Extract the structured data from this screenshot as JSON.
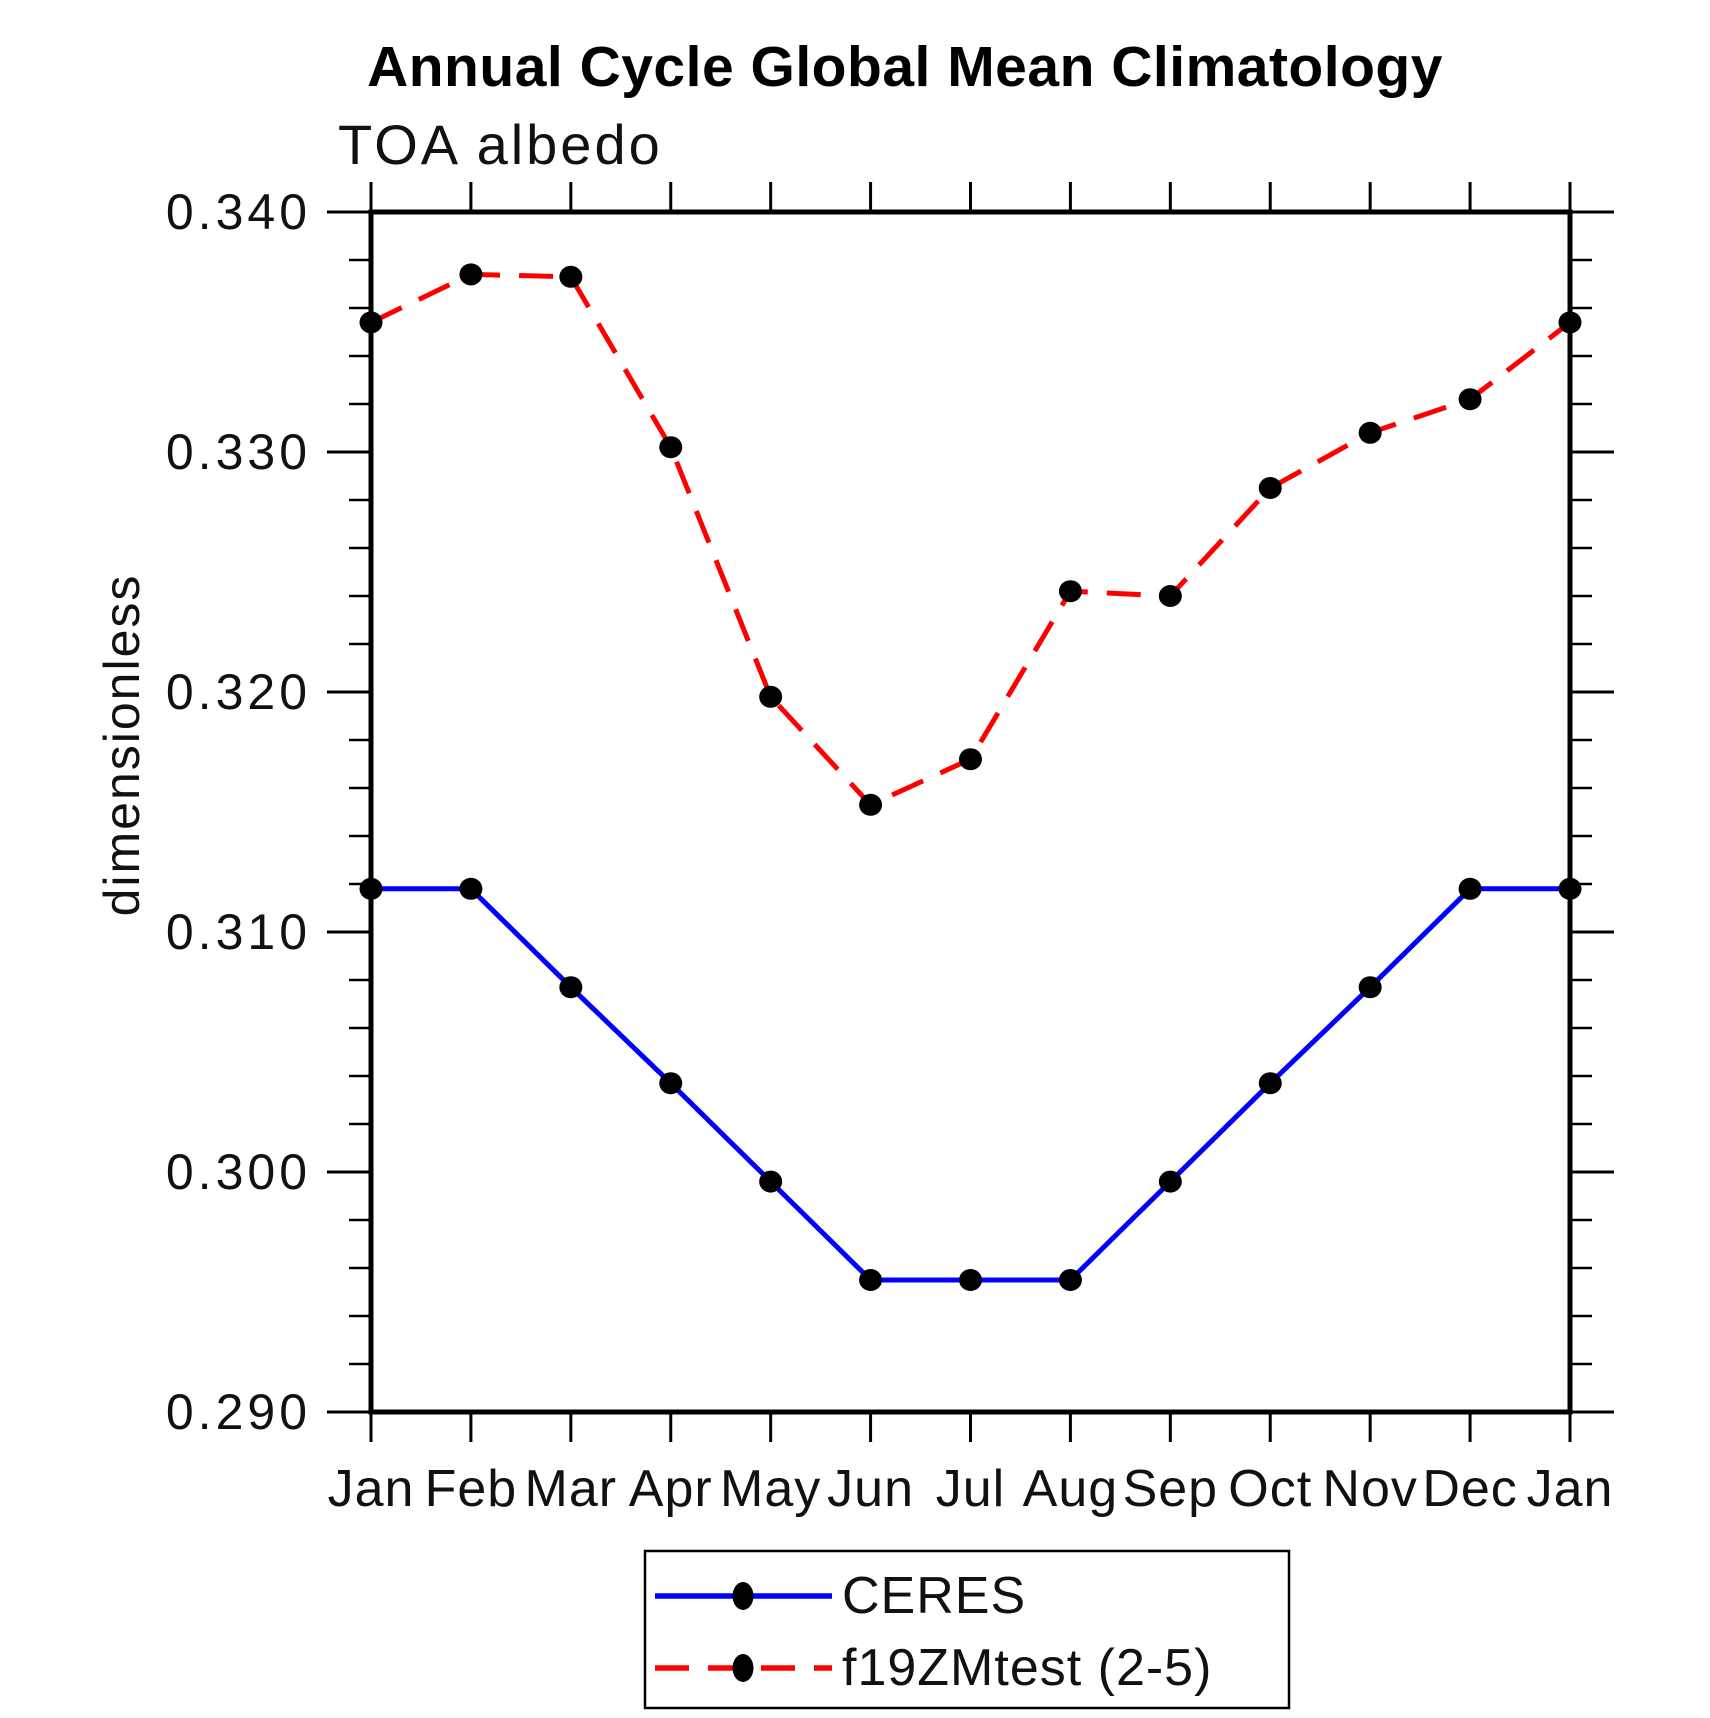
{
  "chart_data": {
    "type": "line",
    "title": "Annual Cycle Global Mean Climatology",
    "subtitle": "TOA albedo",
    "xlabel": "",
    "ylabel": "dimensionless",
    "categories": [
      "Jan",
      "Feb",
      "Mar",
      "Apr",
      "May",
      "Jun",
      "Jul",
      "Aug",
      "Sep",
      "Oct",
      "Nov",
      "Dec",
      "Jan"
    ],
    "ylim": [
      0.29,
      0.34
    ],
    "ytick_major": 0.01,
    "ytick_minor": 0.002,
    "ytick_labels_top_down": [
      "0.340",
      "0.330",
      "0.320",
      "0.310",
      "0.300",
      "0.290"
    ],
    "grid": false,
    "legend_position": "bottom-center",
    "marker_color": "#000000",
    "series": [
      {
        "name": "CERES",
        "color": "#0000ff",
        "style": "solid",
        "marker": "circle",
        "values": [
          0.3118,
          0.3118,
          0.3077,
          0.3037,
          0.2996,
          0.2955,
          0.2955,
          0.2955,
          0.2996,
          0.3037,
          0.3077,
          0.3118,
          0.3118
        ]
      },
      {
        "name": "f19ZMtest (2-5)",
        "color": "#ff0000",
        "style": "dashed",
        "marker": "circle",
        "values": [
          0.3354,
          0.3374,
          0.3373,
          0.3302,
          0.3198,
          0.3153,
          0.3172,
          0.3242,
          0.324,
          0.3285,
          0.3308,
          0.3322,
          0.3354
        ]
      }
    ]
  },
  "legend": {
    "items": [
      {
        "label": "CERES"
      },
      {
        "label": "f19ZMtest (2-5)"
      }
    ]
  }
}
